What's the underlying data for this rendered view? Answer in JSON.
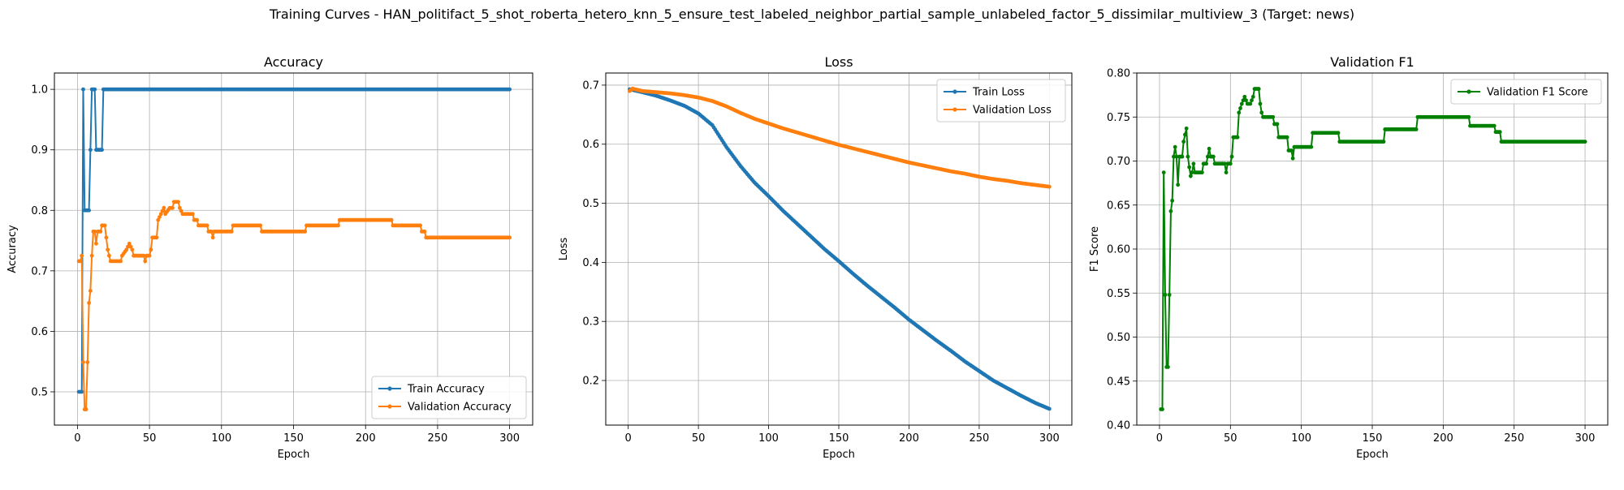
{
  "figure_title": "Training Curves - HAN_politifact_5_shot_roberta_hetero_knn_5_ensure_test_labeled_neighbor_partial_sample_unlabeled_factor_5_dissimilar_multiview_3 (Target: news)",
  "colors": {
    "train": "#1f77b4",
    "validation": "#ff7f0e",
    "f1": "#008000",
    "grid": "#b0b0b0"
  },
  "chart_data": [
    {
      "type": "line",
      "title": "Accuracy",
      "xlabel": "Epoch",
      "ylabel": "Accuracy",
      "xlim": [
        -16,
        316
      ],
      "ylim": [
        0.445,
        1.027
      ],
      "xticks": [
        0,
        50,
        100,
        150,
        200,
        250,
        300
      ],
      "yticks": [
        0.5,
        0.6,
        0.7,
        0.8,
        0.9,
        1.0
      ],
      "ytick_labels": [
        "0.5",
        "0.6",
        "0.7",
        "0.8",
        "0.9",
        "1.0"
      ],
      "grid": true,
      "legend_position": "lower-right",
      "series": [
        {
          "name": "Train Accuracy",
          "color": "#1f77b4",
          "points": [
            [
              1,
              0.5
            ],
            [
              2,
              0.5
            ],
            [
              3,
              0.5
            ],
            [
              4,
              1.0
            ],
            [
              5,
              0.8
            ],
            [
              6,
              0.8
            ],
            [
              7,
              0.8
            ],
            [
              8,
              0.8
            ],
            [
              9,
              0.9
            ],
            [
              10,
              1.0
            ],
            [
              11,
              1.0
            ],
            [
              12,
              1.0
            ],
            [
              13,
              0.9
            ],
            [
              14,
              0.9
            ],
            [
              15,
              0.9
            ],
            [
              16,
              0.9
            ],
            [
              17,
              0.9
            ],
            [
              18,
              1.0
            ],
            [
              300,
              1.0
            ]
          ]
        },
        {
          "name": "Validation Accuracy",
          "color": "#ff7f0e",
          "points": [
            [
              1,
              0.716
            ],
            [
              2,
              0.716
            ],
            [
              3,
              0.725
            ],
            [
              4,
              0.549
            ],
            [
              5,
              0.471
            ],
            [
              6,
              0.471
            ],
            [
              7,
              0.549
            ],
            [
              8,
              0.647
            ],
            [
              9,
              0.667
            ],
            [
              10,
              0.725
            ],
            [
              11,
              0.765
            ],
            [
              12,
              0.765
            ],
            [
              13,
              0.745
            ],
            [
              14,
              0.765
            ],
            [
              15,
              0.765
            ],
            [
              16,
              0.765
            ],
            [
              17,
              0.775
            ],
            [
              18,
              0.775
            ],
            [
              19,
              0.775
            ],
            [
              20,
              0.755
            ],
            [
              21,
              0.735
            ],
            [
              22,
              0.725
            ],
            [
              23,
              0.716
            ],
            [
              30,
              0.716
            ],
            [
              31,
              0.725
            ],
            [
              34,
              0.735
            ],
            [
              36,
              0.745
            ],
            [
              38,
              0.735
            ],
            [
              39,
              0.725
            ],
            [
              46,
              0.725
            ],
            [
              47,
              0.716
            ],
            [
              48,
              0.725
            ],
            [
              50,
              0.725
            ],
            [
              51,
              0.735
            ],
            [
              52,
              0.755
            ],
            [
              55,
              0.755
            ],
            [
              56,
              0.784
            ],
            [
              58,
              0.794
            ],
            [
              60,
              0.804
            ],
            [
              61,
              0.794
            ],
            [
              64,
              0.804
            ],
            [
              66,
              0.804
            ],
            [
              67,
              0.814
            ],
            [
              70,
              0.814
            ],
            [
              71,
              0.804
            ],
            [
              73,
              0.794
            ],
            [
              80,
              0.794
            ],
            [
              81,
              0.784
            ],
            [
              83,
              0.784
            ],
            [
              84,
              0.775
            ],
            [
              90,
              0.775
            ],
            [
              91,
              0.765
            ],
            [
              93,
              0.765
            ],
            [
              94,
              0.755
            ],
            [
              95,
              0.765
            ],
            [
              107,
              0.765
            ],
            [
              108,
              0.775
            ],
            [
              127,
              0.775
            ],
            [
              128,
              0.765
            ],
            [
              158,
              0.765
            ],
            [
              159,
              0.775
            ],
            [
              181,
              0.775
            ],
            [
              182,
              0.784
            ],
            [
              218,
              0.784
            ],
            [
              219,
              0.775
            ],
            [
              238,
              0.775
            ],
            [
              239,
              0.765
            ],
            [
              241,
              0.765
            ],
            [
              242,
              0.755
            ],
            [
              300,
              0.755
            ]
          ]
        }
      ]
    },
    {
      "type": "line",
      "title": "Loss",
      "xlabel": "Epoch",
      "ylabel": "Loss",
      "xlim": [
        -16,
        316
      ],
      "ylim": [
        0.1245,
        0.7205
      ],
      "xticks": [
        0,
        50,
        100,
        150,
        200,
        250,
        300
      ],
      "yticks": [
        0.2,
        0.3,
        0.4,
        0.5,
        0.6,
        0.7
      ],
      "ytick_labels": [
        "0.2",
        "0.3",
        "0.4",
        "0.5",
        "0.6",
        "0.7"
      ],
      "grid": true,
      "legend_position": "top-right",
      "series": [
        {
          "name": "Train Loss",
          "color": "#1f77b4",
          "points": [
            [
              1,
              0.693
            ],
            [
              10,
              0.688
            ],
            [
              20,
              0.682
            ],
            [
              30,
              0.674
            ],
            [
              40,
              0.665
            ],
            [
              50,
              0.652
            ],
            [
              60,
              0.632
            ],
            [
              70,
              0.595
            ],
            [
              80,
              0.563
            ],
            [
              90,
              0.535
            ],
            [
              100,
              0.512
            ],
            [
              110,
              0.488
            ],
            [
              120,
              0.466
            ],
            [
              130,
              0.444
            ],
            [
              140,
              0.422
            ],
            [
              150,
              0.402
            ],
            [
              160,
              0.381
            ],
            [
              170,
              0.361
            ],
            [
              180,
              0.342
            ],
            [
              190,
              0.323
            ],
            [
              200,
              0.303
            ],
            [
              210,
              0.285
            ],
            [
              220,
              0.267
            ],
            [
              230,
              0.25
            ],
            [
              240,
              0.232
            ],
            [
              250,
              0.216
            ],
            [
              260,
              0.2
            ],
            [
              270,
              0.187
            ],
            [
              280,
              0.174
            ],
            [
              290,
              0.162
            ],
            [
              300,
              0.152
            ]
          ]
        },
        {
          "name": "Validation Loss",
          "color": "#ff7f0e",
          "points": [
            [
              1,
              0.69
            ],
            [
              3,
              0.694
            ],
            [
              10,
              0.69
            ],
            [
              20,
              0.688
            ],
            [
              30,
              0.686
            ],
            [
              40,
              0.683
            ],
            [
              50,
              0.679
            ],
            [
              60,
              0.673
            ],
            [
              70,
              0.664
            ],
            [
              80,
              0.653
            ],
            [
              90,
              0.643
            ],
            [
              100,
              0.635
            ],
            [
              110,
              0.627
            ],
            [
              120,
              0.62
            ],
            [
              130,
              0.613
            ],
            [
              140,
              0.606
            ],
            [
              150,
              0.599
            ],
            [
              160,
              0.593
            ],
            [
              170,
              0.587
            ],
            [
              180,
              0.581
            ],
            [
              190,
              0.575
            ],
            [
              200,
              0.569
            ],
            [
              210,
              0.564
            ],
            [
              220,
              0.559
            ],
            [
              230,
              0.554
            ],
            [
              240,
              0.55
            ],
            [
              250,
              0.545
            ],
            [
              260,
              0.541
            ],
            [
              270,
              0.538
            ],
            [
              280,
              0.534
            ],
            [
              290,
              0.531
            ],
            [
              300,
              0.528
            ]
          ]
        }
      ]
    },
    {
      "type": "line",
      "title": "Validation F1",
      "xlabel": "Epoch",
      "ylabel": "F1 Score",
      "xlim": [
        -16,
        316
      ],
      "ylim": [
        0.4,
        0.8
      ],
      "xticks": [
        0,
        50,
        100,
        150,
        200,
        250,
        300
      ],
      "yticks": [
        0.4,
        0.45,
        0.5,
        0.55,
        0.6,
        0.65,
        0.7,
        0.75,
        0.8
      ],
      "ytick_labels": [
        "0.40",
        "0.45",
        "0.50",
        "0.55",
        "0.60",
        "0.65",
        "0.70",
        "0.75",
        "0.80"
      ],
      "grid": true,
      "legend_position": "top-right",
      "series": [
        {
          "name": "Validation F1 Score",
          "color": "#008000",
          "points": [
            [
              1,
              0.418
            ],
            [
              2,
              0.418
            ],
            [
              3,
              0.687
            ],
            [
              4,
              0.548
            ],
            [
              5,
              0.466
            ],
            [
              6,
              0.466
            ],
            [
              7,
              0.548
            ],
            [
              8,
              0.643
            ],
            [
              9,
              0.655
            ],
            [
              10,
              0.705
            ],
            [
              11,
              0.716
            ],
            [
              12,
              0.705
            ],
            [
              13,
              0.673
            ],
            [
              14,
              0.705
            ],
            [
              15,
              0.705
            ],
            [
              16,
              0.705
            ],
            [
              17,
              0.722
            ],
            [
              18,
              0.73
            ],
            [
              19,
              0.737
            ],
            [
              20,
              0.705
            ],
            [
              21,
              0.693
            ],
            [
              22,
              0.683
            ],
            [
              23,
              0.687
            ],
            [
              24,
              0.697
            ],
            [
              25,
              0.687
            ],
            [
              30,
              0.687
            ],
            [
              31,
              0.697
            ],
            [
              33,
              0.697
            ],
            [
              34,
              0.705
            ],
            [
              35,
              0.714
            ],
            [
              36,
              0.705
            ],
            [
              38,
              0.705
            ],
            [
              39,
              0.697
            ],
            [
              46,
              0.697
            ],
            [
              47,
              0.687
            ],
            [
              48,
              0.697
            ],
            [
              50,
              0.697
            ],
            [
              51,
              0.705
            ],
            [
              52,
              0.727
            ],
            [
              55,
              0.727
            ],
            [
              56,
              0.755
            ],
            [
              58,
              0.765
            ],
            [
              60,
              0.773
            ],
            [
              62,
              0.765
            ],
            [
              64,
              0.765
            ],
            [
              66,
              0.773
            ],
            [
              67,
              0.782
            ],
            [
              70,
              0.782
            ],
            [
              71,
              0.765
            ],
            [
              72,
              0.755
            ],
            [
              73,
              0.75
            ],
            [
              80,
              0.75
            ],
            [
              81,
              0.742
            ],
            [
              83,
              0.742
            ],
            [
              84,
              0.727
            ],
            [
              90,
              0.727
            ],
            [
              91,
              0.712
            ],
            [
              93,
              0.712
            ],
            [
              94,
              0.703
            ],
            [
              95,
              0.716
            ],
            [
              107,
              0.716
            ],
            [
              108,
              0.732
            ],
            [
              126,
              0.732
            ],
            [
              127,
              0.722
            ],
            [
              158,
              0.722
            ],
            [
              159,
              0.736
            ],
            [
              181,
              0.736
            ],
            [
              182,
              0.75
            ],
            [
              218,
              0.75
            ],
            [
              219,
              0.74
            ],
            [
              236,
              0.74
            ],
            [
              237,
              0.733
            ],
            [
              240,
              0.733
            ],
            [
              241,
              0.722
            ],
            [
              300,
              0.722
            ]
          ]
        }
      ]
    }
  ]
}
